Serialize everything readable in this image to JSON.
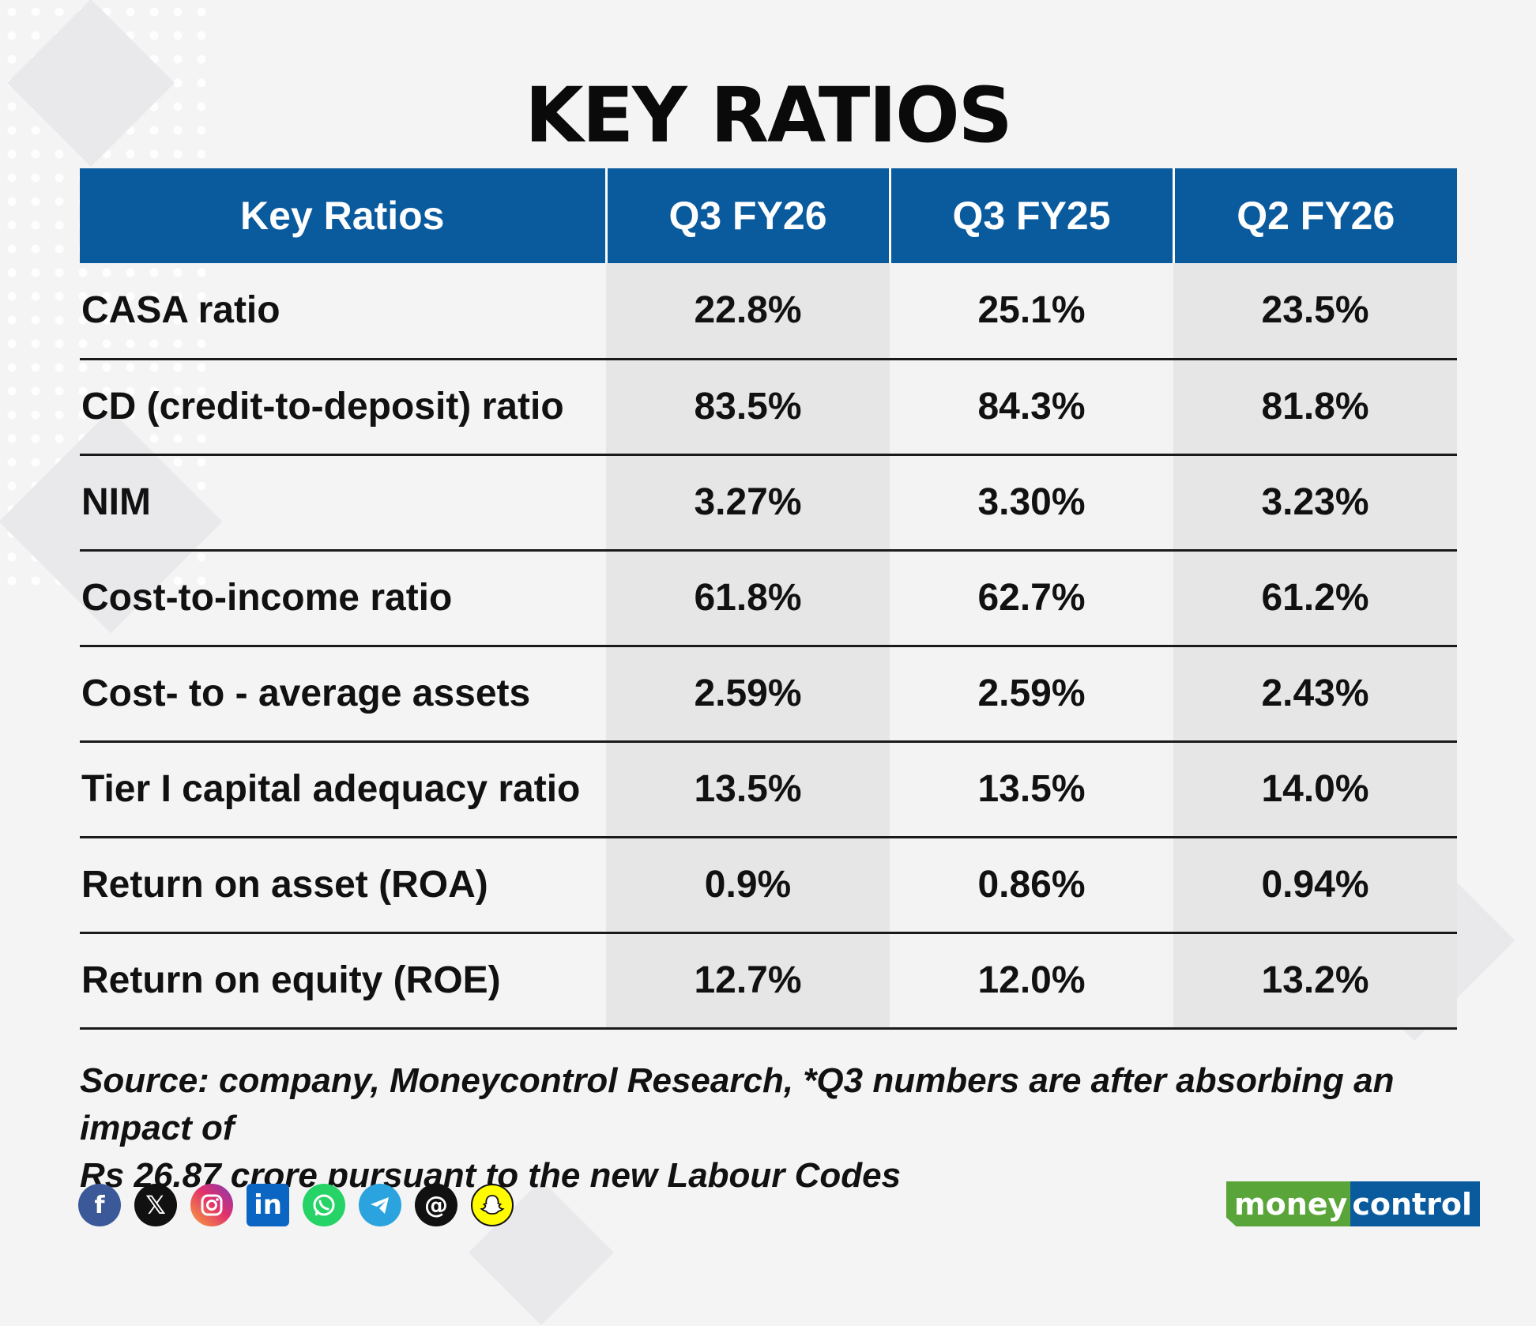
{
  "title": "KEY RATIOS",
  "table": {
    "headers": [
      "Key Ratios",
      "Q3 FY26",
      "Q3 FY25",
      "Q2 FY26"
    ],
    "rows": [
      {
        "label": "CASA ratio",
        "values": [
          "22.8%",
          "25.1%",
          "23.5%"
        ]
      },
      {
        "label": "CD (credit-to-deposit) ratio",
        "values": [
          "83.5%",
          "84.3%",
          "81.8%"
        ]
      },
      {
        "label": "NIM",
        "values": [
          "3.27%",
          "3.30%",
          "3.23%"
        ]
      },
      {
        "label": "Cost-to-income ratio",
        "values": [
          "61.8%",
          "62.7%",
          "61.2%"
        ]
      },
      {
        "label": "Cost- to - average assets",
        "values": [
          "2.59%",
          "2.59%",
          "2.43%"
        ]
      },
      {
        "label": "Tier I capital adequacy ratio",
        "values": [
          "13.5%",
          "13.5%",
          "14.0%"
        ]
      },
      {
        "label": "Return on asset (ROA)",
        "values": [
          "0.9%",
          "0.86%",
          "0.94%"
        ]
      },
      {
        "label": "Return on equity (ROE)",
        "values": [
          "12.7%",
          "12.0%",
          "13.2%"
        ]
      }
    ]
  },
  "source_line1": "Source: company, Moneycontrol Research, *Q3 numbers are after absorbing an impact of",
  "source_line2": "Rs 26.87 crore pursuant to the new Labour Codes",
  "social_icons": [
    "facebook-icon",
    "x-icon",
    "instagram-icon",
    "linkedin-icon",
    "whatsapp-icon",
    "telegram-icon",
    "threads-icon",
    "snapchat-icon"
  ],
  "logo": {
    "part1": "money",
    "part2": "control"
  },
  "colors": {
    "header_bg": "#0a5a9e",
    "logo_green": "#5aa53a",
    "logo_blue": "#0a5a9e"
  }
}
